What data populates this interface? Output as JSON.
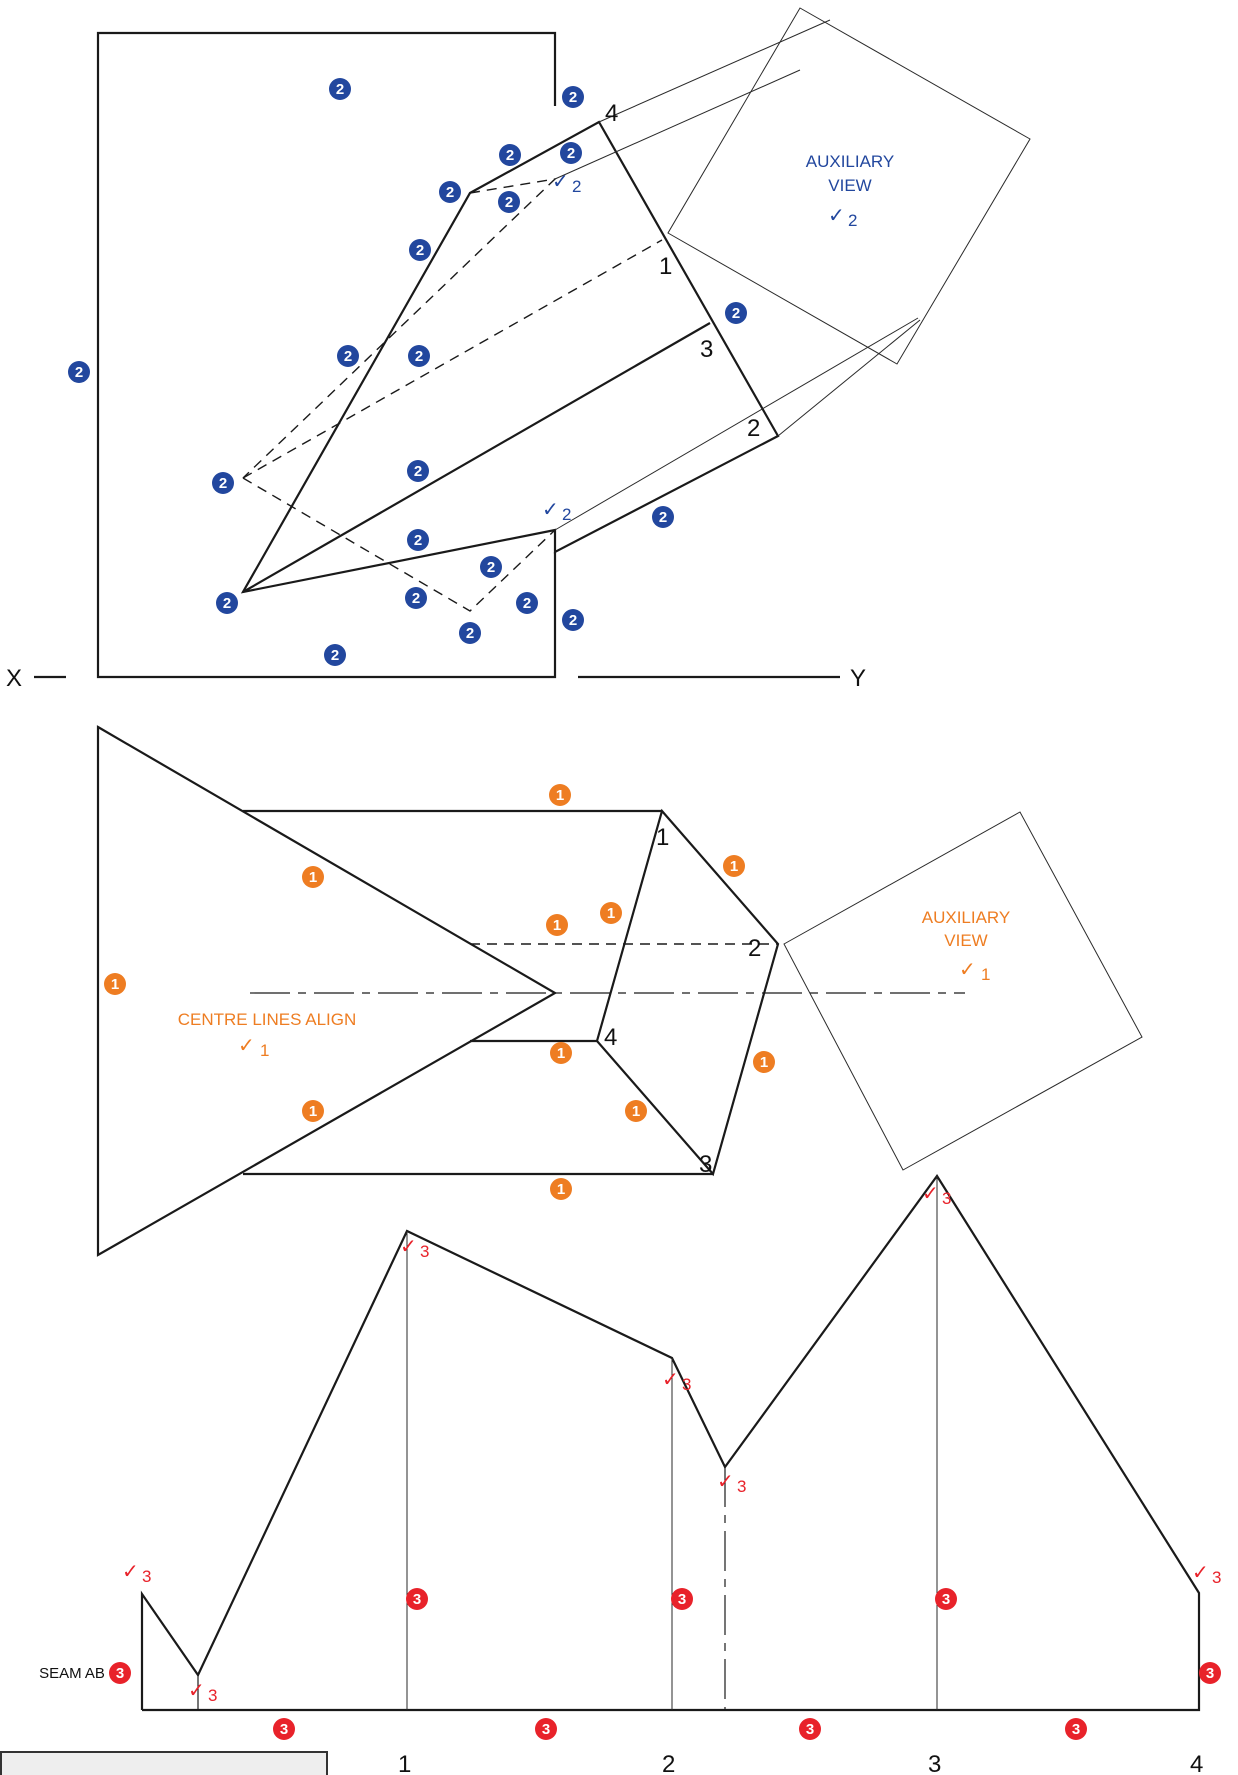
{
  "colors": {
    "view1": "#ee7d22",
    "view2": "#22479e",
    "view3": "#e8222a",
    "line": "#1a1a1a"
  },
  "view2": {
    "axis_x": "X",
    "axis_y": "Y",
    "aux_title_1": "AUXILIARY",
    "aux_title_2": "VIEW",
    "aux_mark": "2",
    "corner_labels": [
      "4",
      "1",
      "3",
      "2"
    ],
    "badge_text": "2",
    "check_mark": "✓",
    "check_num": "2"
  },
  "view1": {
    "centre_text": "CENTRE LINES ALIGN",
    "centre_mark": "1",
    "aux_title_1": "AUXILIARY",
    "aux_title_2": "VIEW",
    "aux_mark": "1",
    "corner_labels": [
      "1",
      "2",
      "4",
      "3"
    ],
    "badge_text": "1",
    "check_mark": "✓"
  },
  "view3": {
    "seam_label": "SEAM AB",
    "badge_text": "3",
    "check_mark": "✓",
    "check_num": "3",
    "base_labels": [
      "1",
      "2",
      "3",
      "4"
    ]
  }
}
